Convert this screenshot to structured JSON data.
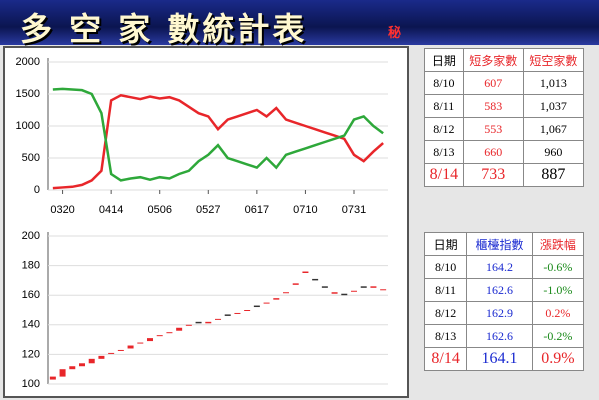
{
  "header": {
    "title": "多 空 家 數統計表",
    "badge": "秘"
  },
  "chart_data": [
    {
      "type": "line",
      "categories": [
        null,
        "0320",
        null,
        null,
        null,
        null,
        "0414",
        null,
        null,
        null,
        null,
        "0506",
        null,
        null,
        null,
        null,
        "0527",
        null,
        null,
        null,
        null,
        "0617",
        null,
        null,
        null,
        null,
        "0710",
        null,
        null,
        null,
        null,
        "0731",
        null,
        null,
        null
      ],
      "series": [
        {
          "color": "#e8262a",
          "values": [
            30,
            40,
            50,
            80,
            150,
            300,
            1400,
            1480,
            1450,
            1420,
            1460,
            1430,
            1450,
            1400,
            1300,
            1200,
            1150,
            950,
            1100,
            1150,
            1200,
            1250,
            1150,
            1280,
            1100,
            1050,
            1000,
            950,
            900,
            850,
            800,
            550,
            450,
            600,
            733
          ]
        },
        {
          "color": "#2ea83a",
          "values": [
            1570,
            1580,
            1570,
            1560,
            1500,
            1200,
            250,
            150,
            180,
            200,
            160,
            200,
            180,
            250,
            300,
            450,
            550,
            700,
            500,
            450,
            400,
            350,
            500,
            350,
            550,
            600,
            650,
            700,
            750,
            800,
            850,
            1100,
            1150,
            1000,
            887
          ]
        }
      ],
      "ylim": [
        0,
        2000
      ],
      "yticks": [
        0,
        500,
        1000,
        1500,
        2000
      ],
      "grid": true
    },
    {
      "type": "candlestick",
      "up_color": "#e8262a",
      "down_color": "#333333",
      "open": [
        103,
        105,
        110,
        112,
        114,
        117,
        121,
        123,
        124,
        128,
        129,
        133,
        135,
        136,
        140,
        142,
        141,
        144,
        147,
        148,
        150,
        153,
        155,
        157,
        162,
        167,
        175,
        171,
        166,
        161,
        161,
        163,
        166,
        165,
        164
      ],
      "close": [
        105,
        110,
        112,
        114,
        117,
        119,
        121,
        123,
        126,
        128,
        131,
        133,
        135,
        138,
        140,
        141,
        142,
        144,
        146,
        148,
        150,
        152,
        155,
        158,
        162,
        168,
        176,
        170,
        165,
        162,
        160,
        163,
        165,
        166,
        164
      ],
      "ylim": [
        100,
        200
      ],
      "yticks": [
        100,
        120,
        140,
        160,
        180,
        200
      ],
      "grid": true
    }
  ],
  "tables": [
    {
      "header": [
        "日期",
        "短多家數",
        "短空家數"
      ],
      "rows": [
        [
          "8/10",
          "607",
          "1,013"
        ],
        [
          "8/11",
          "583",
          "1,037"
        ],
        [
          "8/12",
          "553",
          "1,067"
        ],
        [
          "8/13",
          "660",
          "960"
        ],
        [
          "8/14",
          "733",
          "887"
        ]
      ]
    },
    {
      "header": [
        "日期",
        "櫃檯指數",
        "漲跌幅"
      ],
      "rows": [
        [
          "8/10",
          "164.2",
          "-0.6%"
        ],
        [
          "8/11",
          "162.6",
          "-1.0%"
        ],
        [
          "8/12",
          "162.9",
          "0.2%"
        ],
        [
          "8/13",
          "162.6",
          "-0.2%"
        ],
        [
          "8/14",
          "164.1",
          "0.9%"
        ]
      ]
    }
  ]
}
